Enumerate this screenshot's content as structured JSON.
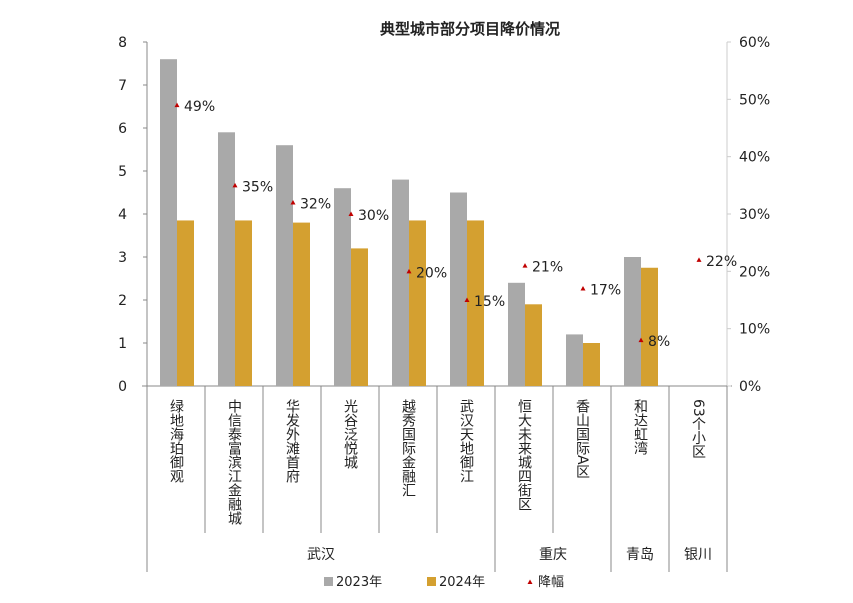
{
  "chart_data": {
    "type": "bar",
    "title": "典型城市部分项目降价情况",
    "categories": [
      "绿地海珀御观",
      "中信泰富滨江金融城",
      "华发外滩首府",
      "光谷泛悦城",
      "越秀国际金融汇",
      "武汉天地御江",
      "恒大未来城四街区",
      "香山国际A区",
      "和达虹湾",
      "63个小区"
    ],
    "groups": [
      {
        "name": "武汉",
        "count": 6
      },
      {
        "name": "重庆",
        "count": 2
      },
      {
        "name": "青岛",
        "count": 1
      },
      {
        "name": "银川",
        "count": 1
      }
    ],
    "series": [
      {
        "name": "2023年",
        "type": "bar",
        "axis": "left",
        "color": "#a9a9a9",
        "values": [
          7.6,
          5.9,
          5.6,
          4.6,
          4.8,
          4.5,
          2.4,
          1.2,
          3.0,
          null
        ]
      },
      {
        "name": "2024年",
        "type": "bar",
        "axis": "left",
        "color": "#d4a030",
        "values": [
          3.85,
          3.85,
          3.8,
          3.2,
          3.85,
          3.85,
          1.9,
          1.0,
          2.75,
          null
        ]
      },
      {
        "name": "降幅",
        "type": "scatter",
        "axis": "right",
        "color": "#c00000",
        "values": [
          49,
          35,
          32,
          30,
          20,
          15,
          21,
          17,
          8,
          22
        ],
        "labels": [
          "49%",
          "35%",
          "32%",
          "30%",
          "20%",
          "15%",
          "21%",
          "17%",
          "8%",
          "22%"
        ]
      }
    ],
    "y_left": {
      "range": [
        0,
        8
      ],
      "ticks": [
        "0",
        "1",
        "2",
        "3",
        "4",
        "5",
        "6",
        "7",
        "8"
      ]
    },
    "y_right": {
      "range": [
        0,
        60
      ],
      "ticks": [
        "0%",
        "10%",
        "20%",
        "30%",
        "40%",
        "50%",
        "60%"
      ]
    },
    "legend": {
      "placement": "bottom"
    },
    "grid": false
  }
}
